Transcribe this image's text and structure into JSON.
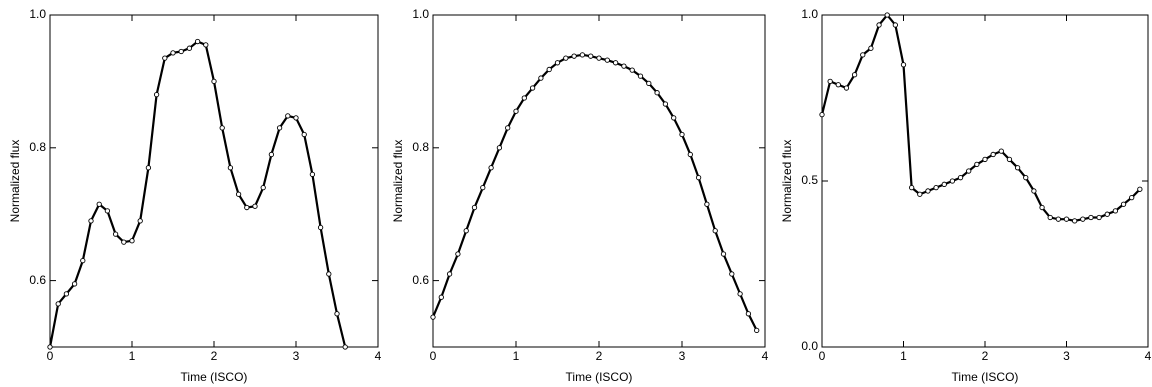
{
  "chart_data": [
    {
      "type": "line",
      "xlabel": "Time (ISCO)",
      "ylabel": "Normalized flux",
      "xlim": [
        0,
        4
      ],
      "ylim": [
        0.5,
        1.0
      ],
      "xticks": [
        0,
        1,
        2,
        3,
        4
      ],
      "yticks": [
        0.6,
        0.8,
        {
          "value": 1,
          "label": "1.0"
        }
      ],
      "x": [
        0,
        0.1,
        0.2,
        0.3,
        0.4,
        0.5,
        0.6,
        0.7,
        0.8,
        0.9,
        1.0,
        1.1,
        1.2,
        1.3,
        1.4,
        1.5,
        1.6,
        1.7,
        1.8,
        1.9,
        2.0,
        2.1,
        2.2,
        2.3,
        2.4,
        2.5,
        2.6,
        2.7,
        2.8,
        2.9,
        3.0,
        3.1,
        3.2,
        3.3,
        3.4,
        3.5,
        3.6
      ],
      "series": [
        {
          "color": "#000000",
          "values": [
            0.5,
            0.565,
            0.58,
            0.595,
            0.63,
            0.69,
            0.715,
            0.705,
            0.67,
            0.658,
            0.66,
            0.69,
            0.77,
            0.88,
            0.935,
            0.943,
            0.945,
            0.95,
            0.96,
            0.955,
            0.9,
            0.83,
            0.77,
            0.73,
            0.71,
            0.712,
            0.74,
            0.79,
            0.83,
            0.848,
            0.845,
            0.82,
            0.76,
            0.68,
            0.61,
            0.55,
            0.5
          ]
        }
      ]
    },
    {
      "type": "line",
      "xlabel": "Time (ISCO)",
      "ylabel": "Normalized flux",
      "xlim": [
        0,
        4
      ],
      "ylim": [
        0.5,
        1.0
      ],
      "xticks": [
        0,
        1,
        2,
        3,
        4
      ],
      "yticks": [
        0.6,
        0.8,
        {
          "value": 1,
          "label": "1.0"
        }
      ],
      "x": [
        0,
        0.1,
        0.2,
        0.3,
        0.4,
        0.5,
        0.6,
        0.7,
        0.8,
        0.9,
        1.0,
        1.1,
        1.2,
        1.3,
        1.4,
        1.5,
        1.6,
        1.7,
        1.8,
        1.9,
        2.0,
        2.1,
        2.2,
        2.3,
        2.4,
        2.5,
        2.6,
        2.7,
        2.8,
        2.9,
        3.0,
        3.1,
        3.2,
        3.3,
        3.4,
        3.5,
        3.6,
        3.7,
        3.8,
        3.9
      ],
      "series": [
        {
          "color": "#000000",
          "values": [
            0.545,
            0.575,
            0.61,
            0.64,
            0.675,
            0.71,
            0.74,
            0.77,
            0.8,
            0.83,
            0.855,
            0.875,
            0.89,
            0.905,
            0.918,
            0.928,
            0.935,
            0.938,
            0.94,
            0.938,
            0.935,
            0.932,
            0.928,
            0.923,
            0.917,
            0.908,
            0.897,
            0.883,
            0.866,
            0.845,
            0.82,
            0.79,
            0.755,
            0.715,
            0.675,
            0.64,
            0.61,
            0.58,
            0.55,
            0.525
          ]
        }
      ]
    },
    {
      "type": "line",
      "xlabel": "Time (ISCO)",
      "ylabel": "Normalized flux",
      "xlim": [
        0,
        4
      ],
      "ylim": [
        0,
        1
      ],
      "xticks": [
        0,
        1,
        2,
        3,
        4
      ],
      "yticks": [
        {
          "value": 0,
          "label": "0.0"
        },
        0.5,
        {
          "value": 1,
          "label": "1.0"
        }
      ],
      "x": [
        0,
        0.1,
        0.2,
        0.3,
        0.4,
        0.5,
        0.6,
        0.7,
        0.8,
        0.9,
        1.0,
        1.1,
        1.2,
        1.3,
        1.4,
        1.5,
        1.6,
        1.7,
        1.8,
        1.9,
        2.0,
        2.1,
        2.2,
        2.3,
        2.4,
        2.5,
        2.6,
        2.7,
        2.8,
        2.9,
        3.0,
        3.1,
        3.2,
        3.3,
        3.4,
        3.5,
        3.6,
        3.7,
        3.8,
        3.9
      ],
      "series": [
        {
          "color": "#000000",
          "values": [
            0.7,
            0.8,
            0.79,
            0.78,
            0.82,
            0.88,
            0.9,
            0.97,
            1.0,
            0.97,
            0.85,
            0.48,
            0.46,
            0.47,
            0.48,
            0.49,
            0.5,
            0.51,
            0.53,
            0.55,
            0.565,
            0.58,
            0.59,
            0.565,
            0.54,
            0.51,
            0.47,
            0.42,
            0.39,
            0.385,
            0.385,
            0.38,
            0.385,
            0.39,
            0.39,
            0.4,
            0.41,
            0.43,
            0.45,
            0.475
          ]
        }
      ]
    }
  ]
}
